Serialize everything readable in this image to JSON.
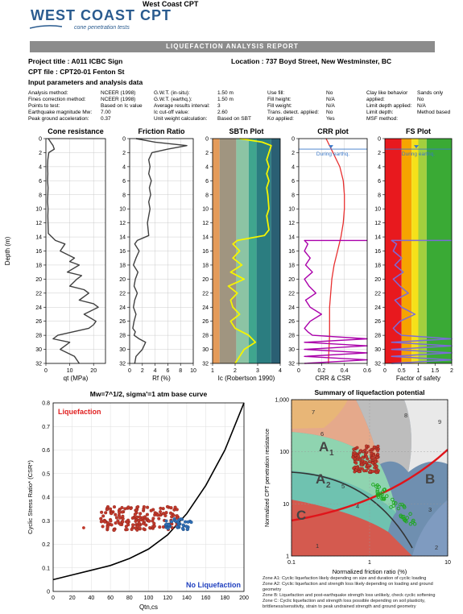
{
  "header": {
    "company": "West Coast CPT",
    "logo_main": "WEST COAST CPT",
    "logo_sub": "cone penetration tests",
    "report_title": "LIQUEFACTION ANALYSIS REPORT"
  },
  "project": {
    "title": "Project title : A011 ICBC Sign",
    "location": "Location : 737 Boyd Street, New Westminster, BC",
    "cpt_file": "CPT file : CPT20-01 Fenton St",
    "input_header": "Input parameters and analysis data"
  },
  "params": {
    "col1_labels": [
      "Analysis method:",
      "Fines correction method:",
      "Points to test:",
      "Earthquake magnitude Mw:",
      "Peak ground acceleration:"
    ],
    "col1_values": [
      "NCEER (1998)",
      "NCEER (1998)",
      "Based on Ic value",
      "7.00",
      "0.37"
    ],
    "col2_labels": [
      "G.W.T. (in-situ):",
      "G.W.T. (earthq.):",
      "Average results interval:",
      "Ic cut-off value:",
      "Unit weight calculation:"
    ],
    "col2_values": [
      "1.50 m",
      "1.50 m",
      "3",
      "2.60",
      "Based on SBT"
    ],
    "col3_labels": [
      "Use fill:",
      "Fill height:",
      "Fill weight:",
      "Trans. detect. applied:",
      "Kσ applied:"
    ],
    "col3_values": [
      "No",
      "N/A",
      "N/A",
      "No",
      "Yes"
    ],
    "col4_labels": [
      "Clay like behavior",
      "applied:",
      "Limit depth applied:",
      "Limit depth:",
      "MSF method:"
    ],
    "col4_values": [
      "",
      "Sands only",
      "No",
      "N/A",
      "Method based"
    ]
  },
  "colors": {
    "trace": "#404040",
    "ic_trace": "#f5f500",
    "crr_trace": "#aa00aa",
    "csr_trace": "#e83030",
    "fs_trace": "#7b6cd9",
    "gwt": "#3a78c8",
    "scatter_red": "#c0392b",
    "scatter_blue": "#2f6fb5",
    "liq_label": "#e02020",
    "noliq_label": "#1f3fbf",
    "boundary": "#e0141a"
  },
  "profile_plots": {
    "depth_label": "Depth (m)",
    "depth_ticks": [
      0,
      2,
      4,
      6,
      8,
      10,
      12,
      14,
      16,
      18,
      20,
      22,
      24,
      26,
      28,
      30,
      32
    ],
    "gwt_label": "During earthq.",
    "panels": [
      {
        "title": "Cone resistance",
        "xlabel": "qt (MPa)",
        "ticks": [
          "0",
          "10",
          "20"
        ],
        "xlim": [
          0,
          25
        ]
      },
      {
        "title": "Friction Ratio",
        "xlabel": "Rf (%)",
        "ticks": [
          "0",
          "2",
          "4",
          "6",
          "8",
          "10"
        ],
        "xlim": [
          0,
          10
        ]
      },
      {
        "title": "SBTn Plot",
        "xlabel": "Ic (Robertson 1990)",
        "ticks": [
          "1",
          "2",
          "3",
          "4"
        ],
        "xlim": [
          1,
          4
        ]
      },
      {
        "title": "CRR plot",
        "xlabel": "CRR & CSR",
        "ticks": [
          "0",
          "0.2",
          "0.4",
          "0.6"
        ],
        "xlim": [
          0,
          0.6
        ]
      },
      {
        "title": "FS Plot",
        "xlabel": "Factor of safety",
        "ticks": [
          "0",
          "0.5",
          "1",
          "1.5",
          "2"
        ],
        "xlim": [
          0,
          2
        ]
      }
    ]
  },
  "chart_data": [
    {
      "type": "line",
      "title": "Cone resistance",
      "xlabel": "qt (MPa)",
      "ylabel": "Depth (m)",
      "xlim": [
        0,
        25
      ],
      "ylim": [
        32,
        0
      ],
      "x": [
        1,
        2,
        3,
        3.5,
        1.2,
        0.8,
        0.7,
        0.8,
        0.7,
        0.9,
        0.8,
        0.7,
        0.9,
        0.8,
        1.0,
        4,
        8,
        6,
        12,
        10,
        14,
        9,
        15,
        13,
        10,
        16,
        18,
        14,
        20,
        22,
        16,
        21,
        20,
        18,
        5,
        3,
        10,
        8,
        6,
        12,
        14
      ],
      "y": [
        0,
        0.5,
        1.0,
        1.5,
        2.0,
        3,
        4,
        5,
        6,
        7,
        8,
        9,
        10,
        11,
        13.5,
        14.5,
        15,
        16,
        17,
        17.5,
        18,
        19,
        19.5,
        20,
        21,
        21.5,
        22,
        23,
        23.5,
        24,
        25,
        26,
        26.5,
        27,
        28,
        28.5,
        29,
        29.5,
        30,
        31,
        32
      ]
    },
    {
      "type": "line",
      "title": "Friction Ratio",
      "xlabel": "Rf (%)",
      "ylabel": "Depth (m)",
      "xlim": [
        0,
        10
      ],
      "ylim": [
        32,
        0
      ],
      "x": [
        1,
        4,
        9,
        6,
        3.5,
        3,
        3.2,
        3.0,
        3.4,
        3.1,
        3.3,
        3.0,
        3.2,
        2.8,
        3.0,
        1.2,
        0.8,
        1.5,
        1.0,
        0.6,
        1.3,
        0.9,
        0.7,
        1.2,
        0.8,
        0.6,
        1.0,
        0.7,
        0.5,
        0.9,
        0.7,
        1.5,
        2.5,
        2.0,
        1.0,
        0.8
      ],
      "y": [
        0,
        0.5,
        1.0,
        1.5,
        2,
        3,
        4,
        5,
        6,
        7,
        8,
        9,
        10,
        12,
        13.8,
        14.5,
        15,
        16,
        17,
        18,
        19,
        20,
        21,
        22,
        23,
        24,
        25,
        26,
        27,
        27.5,
        28,
        28.5,
        29,
        30,
        31,
        32
      ]
    },
    {
      "type": "line",
      "title": "SBTn Plot",
      "xlabel": "Ic (Robertson 1990)",
      "ylabel": "Depth (m)",
      "xlim": [
        1,
        4
      ],
      "ylim": [
        32,
        0
      ],
      "x": [
        2.2,
        3.2,
        3.6,
        3.5,
        3.4,
        3.5,
        3.4,
        3.5,
        3.4,
        3.45,
        3.5,
        3.4,
        3.5,
        3.3,
        2.1,
        1.9,
        2.2,
        1.9,
        2.3,
        1.8,
        2.4,
        1.7,
        2.1,
        1.8,
        1.9,
        2.2,
        1.8,
        2.0,
        2.6,
        2.9,
        2.4,
        2.2,
        2.0
      ],
      "y": [
        0,
        0.5,
        1.0,
        2,
        3,
        4,
        5,
        6,
        7,
        8,
        10,
        11,
        13,
        13.8,
        14.5,
        15,
        16,
        17,
        18,
        19,
        20,
        21,
        22,
        23,
        24,
        25,
        26,
        27,
        28,
        29,
        30,
        31,
        32
      ]
    },
    {
      "type": "line",
      "title": "CRR plot",
      "xlabel": "CRR & CSR",
      "ylabel": "Depth (m)",
      "xlim": [
        0,
        0.6
      ],
      "ylim": [
        32,
        0
      ],
      "series": [
        {
          "values_x": [
            0.24,
            0.3,
            0.36,
            0.39,
            0.4,
            0.4,
            0.39,
            0.37,
            0.34,
            0.31,
            0.29,
            0.28,
            0.27,
            0.27,
            0.26
          ],
          "values_y": [
            0,
            2,
            4,
            6,
            8,
            10,
            12,
            14,
            16,
            18,
            20,
            22,
            24,
            28,
            32
          ]
        },
        {
          "values_x": [
            0.6,
            0.05,
            0.08,
            0.05,
            0.1,
            0.06,
            0.12,
            0.05,
            0.09,
            0.15,
            0.06,
            0.1,
            0.2,
            0.1,
            0.05,
            0.08,
            0.12,
            0.6,
            0.05,
            0.6,
            0.05,
            0.6,
            0.05,
            0.6,
            0.05
          ],
          "values_y": [
            14.5,
            14.5,
            15,
            16,
            17,
            18,
            19,
            20,
            21,
            22,
            23,
            24,
            25,
            26,
            27,
            27.5,
            28,
            28.5,
            29,
            29.5,
            30,
            30.5,
            31,
            31.5,
            32
          ]
        }
      ]
    },
    {
      "type": "line",
      "title": "FS Plot",
      "xlabel": "Factor of safety",
      "ylabel": "Depth (m)",
      "xlim": [
        0,
        2
      ],
      "ylim": [
        32,
        0
      ],
      "x": [
        2,
        0.2,
        0.35,
        0.25,
        0.5,
        0.3,
        0.55,
        0.25,
        0.45,
        0.7,
        0.3,
        0.5,
        0.9,
        0.45,
        0.25,
        0.35,
        0.5,
        2,
        0.2,
        2,
        0.2,
        2,
        0.2,
        2,
        0.2
      ],
      "y": [
        14.5,
        14.5,
        15,
        16,
        17,
        18,
        19,
        20,
        21,
        22,
        23,
        24,
        25,
        26,
        27,
        27.5,
        28,
        28.5,
        29,
        29.5,
        30,
        30.5,
        31,
        31.5,
        32
      ]
    },
    {
      "type": "scatter",
      "title": "Mw=7^1/2, sigma'=1 atm base curve",
      "xlabel": "Qtn,cs",
      "ylabel": "Cyclic Stress Ratio* (CSR*)",
      "xlim": [
        0,
        200
      ],
      "ylim": [
        0,
        0.8
      ],
      "x_ticks": [
        "0",
        "20",
        "40",
        "60",
        "80",
        "100",
        "120",
        "140",
        "160",
        "180",
        "200"
      ],
      "y_ticks": [
        "0",
        "0.1",
        "0.2",
        "0.3",
        "0.4",
        "0.5",
        "0.6",
        "0.7",
        "0.8"
      ],
      "annotations": [
        "Liquefaction",
        "No Liquefaction"
      ],
      "series": [
        {
          "x_range": [
            32,
            133
          ],
          "y_range": [
            0.26,
            0.36
          ]
        },
        {
          "x_range": [
            118,
            148
          ],
          "y_range": [
            0.26,
            0.31
          ]
        }
      ],
      "curve": {
        "x": [
          0,
          20,
          40,
          60,
          80,
          100,
          120,
          140,
          160,
          180,
          200
        ],
        "y": [
          0.05,
          0.07,
          0.09,
          0.11,
          0.14,
          0.18,
          0.24,
          0.33,
          0.45,
          0.6,
          0.8
        ]
      }
    },
    {
      "type": "scatter",
      "title": "Summary of liquefaction potential",
      "xlabel": "Normalized friction ratio (%)",
      "ylabel": "Normalized CPT penetration resistance",
      "xscale": "log",
      "yscale": "log",
      "xlim": [
        0.1,
        10
      ],
      "ylim": [
        1,
        1000
      ],
      "x_ticks": [
        "0.1",
        "1",
        "10"
      ],
      "y_ticks": [
        "1",
        "10",
        "100",
        "1,000"
      ],
      "zone_labels": [
        "A1",
        "A2",
        "B",
        "C",
        "1",
        "2",
        "3",
        "4",
        "5",
        "6",
        "7",
        "8",
        "9"
      ],
      "series": [
        {
          "x_range": [
            0.6,
            1.3
          ],
          "y_range": [
            40,
            130
          ]
        },
        {
          "x_range": [
            1.1,
            3.8
          ],
          "y_range": [
            4,
            30
          ]
        }
      ]
    }
  ],
  "scatter_plot": {
    "title": "Mw=7^1/2, sigma'=1 atm base curve",
    "ylabel": "Cyclic Stress Ratio* (CSR*)",
    "xlabel": "Qtn,cs",
    "liq_label": "Liquefaction",
    "noliq_label": "No Liquefaction",
    "x_ticks": [
      "0",
      "20",
      "40",
      "60",
      "80",
      "100",
      "120",
      "140",
      "160",
      "180",
      "200"
    ],
    "y_ticks": [
      "0",
      "0.1",
      "0.2",
      "0.3",
      "0.4",
      "0.5",
      "0.6",
      "0.7",
      "0.8"
    ]
  },
  "summary_plot": {
    "title": "Summary of liquefaction potential",
    "ylabel": "Normalized CPT penetration resistance",
    "xlabel": "Normalized friction ratio (%)",
    "x_ticks": [
      "0.1",
      "1",
      "10"
    ],
    "y_ticks": [
      "1",
      "10",
      "100",
      "1,000"
    ],
    "zones": {
      "a1": "A",
      "a1_sub": "1",
      "a2": "A",
      "a2_sub": "2",
      "b": "B",
      "c": "C"
    },
    "zone_numbers": [
      "1",
      "2",
      "3",
      "4",
      "5",
      "6",
      "7",
      "8",
      "9"
    ]
  },
  "notes": [
    "Zone A1: Cyclic liquefaction likely depending on size and duration of cyclic loading",
    "Zone A2: Cyclic liquefaction and strength loss likely depending on loading and ground geometry",
    "Zone B: Liquefaction and post-earthquake strength loss unlikely, check cyclic softening",
    "Zone C: Cyclic liquefaction and strength loss possible depending on soil plasticity, brittleness/sensitivity, strain to peak undrained strength and ground geometry"
  ]
}
